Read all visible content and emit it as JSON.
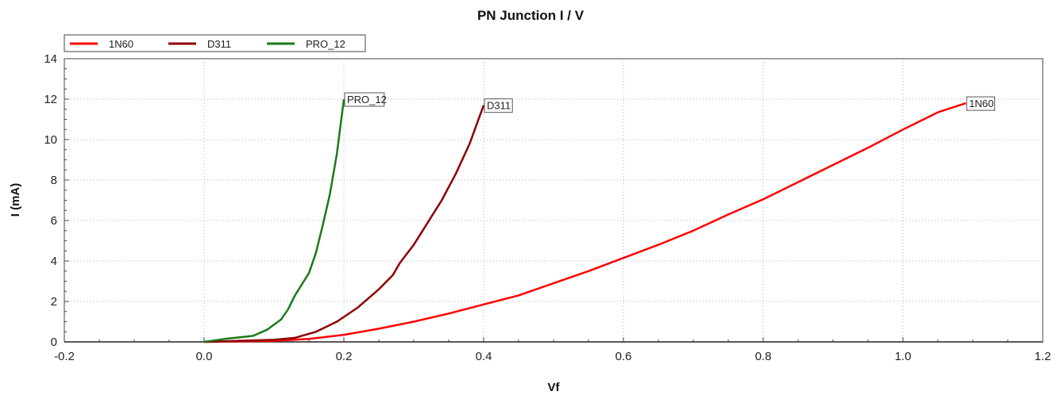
{
  "chart_data": {
    "type": "line",
    "title": "PN Junction I / V",
    "xlabel": "Vf",
    "ylabel": "I (mA)",
    "xlim": [
      -0.2,
      1.2
    ],
    "ylim": [
      0,
      14
    ],
    "xticks": [
      -0.2,
      0.0,
      0.2,
      0.4,
      0.6,
      0.8,
      1.0,
      1.2
    ],
    "xtick_labels": [
      "-0.2",
      "0.0",
      "0.2",
      "0.4",
      "0.6",
      "0.8",
      "1.0",
      "1.2"
    ],
    "yticks": [
      0,
      2,
      4,
      6,
      8,
      10,
      12,
      14
    ],
    "ytick_labels": [
      "0",
      "2",
      "4",
      "6",
      "8",
      "10",
      "12",
      "14"
    ],
    "grid": true,
    "legend_position": "top-left",
    "series": [
      {
        "name": "1N60",
        "color": "#ff0000",
        "annotation": "1N60",
        "x": [
          0.0,
          0.1,
          0.15,
          0.2,
          0.25,
          0.3,
          0.35,
          0.4,
          0.45,
          0.5,
          0.55,
          0.6,
          0.65,
          0.7,
          0.75,
          0.8,
          0.85,
          0.9,
          0.95,
          1.0,
          1.05,
          1.09
        ],
        "y": [
          0.0,
          0.05,
          0.15,
          0.35,
          0.65,
          1.0,
          1.4,
          1.85,
          2.3,
          2.9,
          3.5,
          4.15,
          4.8,
          5.5,
          6.3,
          7.05,
          7.9,
          8.75,
          9.6,
          10.5,
          11.35,
          11.8
        ]
      },
      {
        "name": "D311",
        "color": "#8b0000",
        "annotation": "D311",
        "x": [
          0.0,
          0.1,
          0.13,
          0.16,
          0.19,
          0.22,
          0.25,
          0.27,
          0.28,
          0.3,
          0.32,
          0.34,
          0.36,
          0.38,
          0.4
        ],
        "y": [
          0.0,
          0.1,
          0.2,
          0.5,
          1.0,
          1.7,
          2.6,
          3.3,
          3.9,
          4.8,
          5.9,
          7.0,
          8.3,
          9.8,
          11.7
        ]
      },
      {
        "name": "PRO_12",
        "color": "#1a7a1a",
        "annotation": "PRO_12",
        "x": [
          0.0,
          0.03,
          0.07,
          0.09,
          0.11,
          0.12,
          0.13,
          0.15,
          0.16,
          0.17,
          0.18,
          0.19,
          0.2
        ],
        "y": [
          0.0,
          0.15,
          0.3,
          0.6,
          1.1,
          1.6,
          2.3,
          3.4,
          4.4,
          5.8,
          7.3,
          9.3,
          12.0
        ]
      }
    ]
  }
}
